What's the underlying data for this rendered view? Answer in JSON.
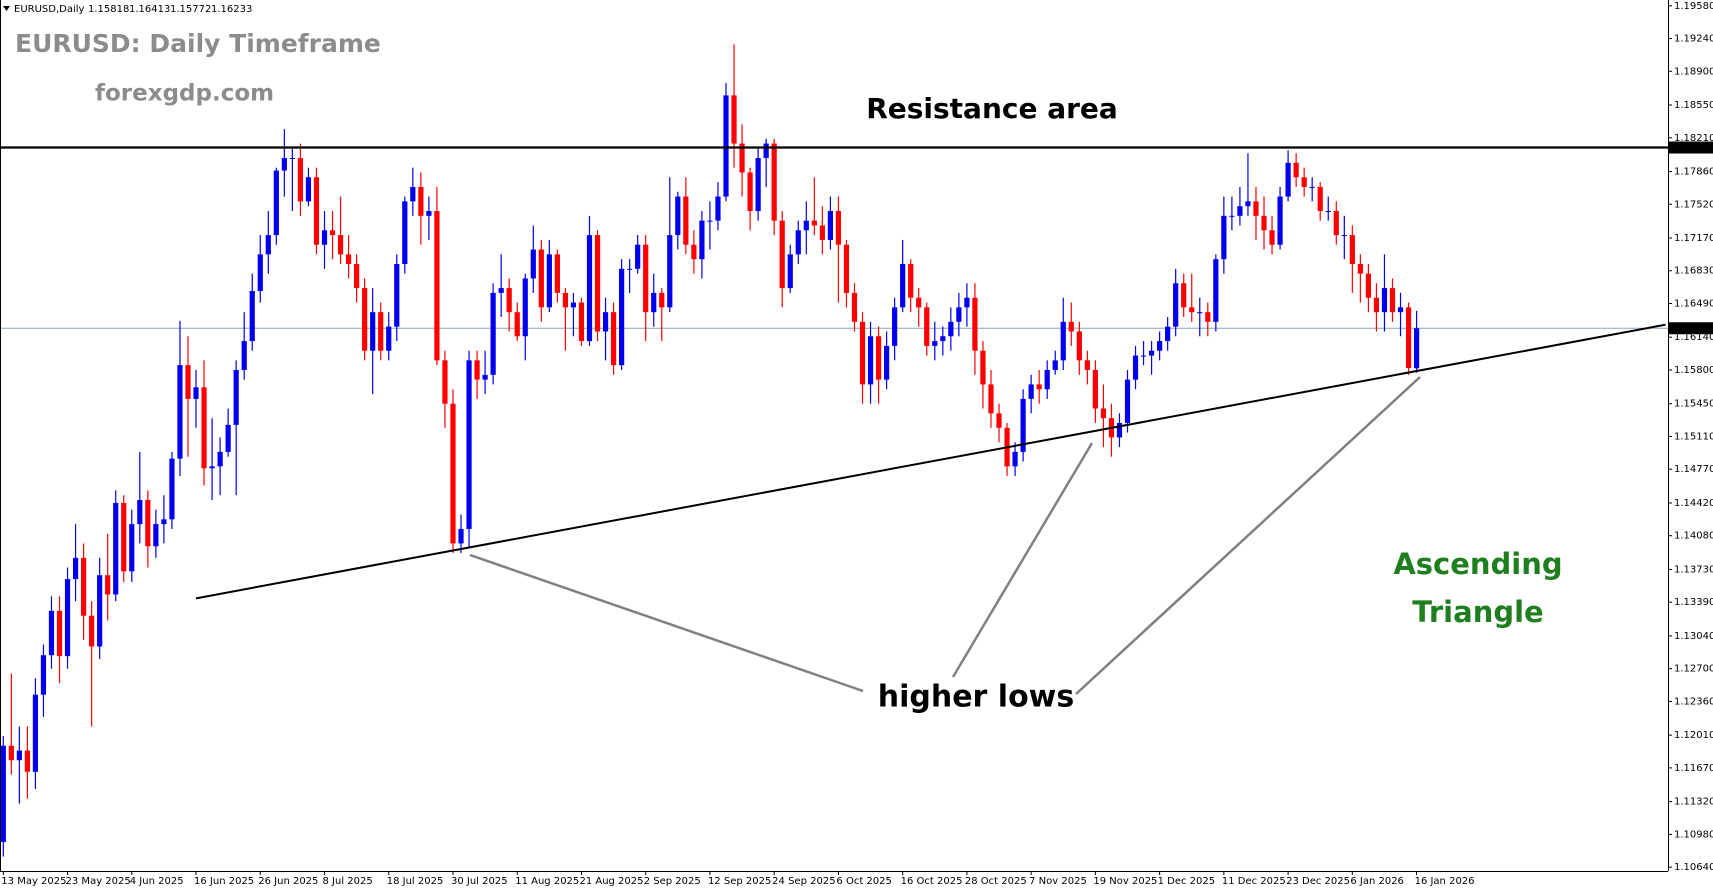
{
  "chart_data": {
    "type": "candlestick",
    "symbol": "EURUSD,Daily",
    "title": "EURUSD: Daily Timeframe",
    "subtitle": "forexgdp.com",
    "resistance_label": "Resistance area",
    "lows_label": "higher lows",
    "pattern_label": [
      "Ascending",
      "Triangle"
    ],
    "colors": {
      "up": "#0000ee",
      "down": "#ff0000",
      "resistance": "#000000",
      "trendline": "#000000",
      "price_line": "#8aa4c0",
      "text_muted": "#8c8c8c",
      "pattern": "#1f7f1f"
    },
    "resistance": 1.18109,
    "trendline": {
      "x": [
        24,
        207
      ],
      "y": [
        1.1343,
        1.1627
      ]
    },
    "ylim": [
      1.106,
      1.1964
    ],
    "yticks": [
      {
        "value": 1.1958,
        "label": "1.19580"
      },
      {
        "value": 1.1924,
        "label": "1.19240"
      },
      {
        "value": 1.189,
        "label": "1.18900"
      },
      {
        "value": 1.1855,
        "label": "1.18550"
      },
      {
        "value": 1.1821,
        "label": "1.18210"
      },
      {
        "value": 1.1786,
        "label": "1.17860"
      },
      {
        "value": 1.1752,
        "label": "1.17520"
      },
      {
        "value": 1.1717,
        "label": "1.17170"
      },
      {
        "value": 1.1683,
        "label": "1.16830"
      },
      {
        "value": 1.1649,
        "label": "1.16490"
      },
      {
        "value": 1.1614,
        "label": "1.16140"
      },
      {
        "value": 1.158,
        "label": "1.15800"
      },
      {
        "value": 1.1545,
        "label": "1.15450"
      },
      {
        "value": 1.1511,
        "label": "1.15110"
      },
      {
        "value": 1.1477,
        "label": "1.14770"
      },
      {
        "value": 1.1442,
        "label": "1.14420"
      },
      {
        "value": 1.1408,
        "label": "1.14080"
      },
      {
        "value": 1.1373,
        "label": "1.13730"
      },
      {
        "value": 1.1339,
        "label": "1.13390"
      },
      {
        "value": 1.1304,
        "label": "1.13040"
      },
      {
        "value": 1.127,
        "label": "1.12700"
      },
      {
        "value": 1.1236,
        "label": "1.12360"
      },
      {
        "value": 1.1201,
        "label": "1.12010"
      },
      {
        "value": 1.1167,
        "label": "1.11670"
      },
      {
        "value": 1.1132,
        "label": "1.11320"
      },
      {
        "value": 1.1098,
        "label": "1.10980"
      },
      {
        "value": 1.1064,
        "label": "1.10640"
      }
    ],
    "categories": [
      "13 May 2025",
      null,
      null,
      null,
      null,
      null,
      null,
      null,
      "23 May 2025",
      null,
      null,
      null,
      null,
      null,
      null,
      null,
      "4 Jun 2025",
      null,
      null,
      null,
      null,
      null,
      null,
      null,
      "16 Jun 2025",
      null,
      null,
      null,
      null,
      null,
      null,
      null,
      "26 Jun 2025",
      null,
      null,
      null,
      null,
      null,
      null,
      null,
      "8 Jul 2025",
      null,
      null,
      null,
      null,
      null,
      null,
      null,
      "18 Jul 2025",
      null,
      null,
      null,
      null,
      null,
      null,
      null,
      "30 Jul 2025",
      null,
      null,
      null,
      null,
      null,
      null,
      null,
      "11 Aug 2025",
      null,
      null,
      null,
      null,
      null,
      null,
      null,
      "21 Aug 2025",
      null,
      null,
      null,
      null,
      null,
      null,
      null,
      "2 Sep 2025",
      null,
      null,
      null,
      null,
      null,
      null,
      null,
      "12 Sep 2025",
      null,
      null,
      null,
      null,
      null,
      null,
      null,
      "24 Sep 2025",
      null,
      null,
      null,
      null,
      null,
      null,
      null,
      "6 Oct 2025",
      null,
      null,
      null,
      null,
      null,
      null,
      null,
      "16 Oct 2025",
      null,
      null,
      null,
      null,
      null,
      null,
      null,
      "28 Oct 2025",
      null,
      null,
      null,
      null,
      null,
      null,
      null,
      "7 Nov 2025",
      null,
      null,
      null,
      null,
      null,
      null,
      null,
      "19 Nov 2025",
      null,
      null,
      null,
      null,
      null,
      null,
      null,
      "1 Dec 2025",
      null,
      null,
      null,
      null,
      null,
      null,
      null,
      "11 Dec 2025",
      null,
      null,
      null,
      null,
      null,
      null,
      null,
      "23 Dec 2025",
      null,
      null,
      null,
      null,
      null,
      null,
      null,
      "6 Jan 2026",
      null,
      null,
      null,
      null,
      null,
      null,
      null,
      "16 Jan 2026"
    ],
    "open": [
      1.109,
      1.119,
      1.1175,
      1.1185,
      1.1163,
      1.1243,
      1.1284,
      1.133,
      1.1283,
      1.1363,
      1.1385,
      1.1325,
      1.1293,
      1.1367,
      1.1347,
      1.1442,
      1.1371,
      1.142,
      1.1445,
      1.1397,
      1.142,
      1.1425,
      1.1488,
      1.1585,
      1.155,
      1.1562,
      1.1478,
      1.148,
      1.1495,
      1.1523,
      1.158,
      1.161,
      1.1662,
      1.17,
      1.172,
      1.1787,
      1.18,
      1.18,
      1.1755,
      1.178,
      1.171,
      1.1725,
      1.172,
      1.17,
      1.169,
      1.1665,
      1.16,
      1.164,
      1.16,
      1.1625,
      1.169,
      1.1755,
      1.177,
      1.174,
      1.1745,
      1.159,
      1.1545,
      1.14,
      1.1415,
      1.159,
      1.157,
      1.1575,
      1.166,
      1.1665,
      1.164,
      1.1615,
      1.1675,
      1.1705,
      1.1645,
      1.17,
      1.166,
      1.1645,
      1.165,
      1.161,
      1.172,
      1.162,
      1.164,
      1.1585,
      1.1685,
      1.1685,
      1.171,
      1.164,
      1.166,
      1.1645,
      1.172,
      1.176,
      1.171,
      1.1695,
      1.1735,
      1.1735,
      1.176,
      1.1865,
      1.1815,
      1.1785,
      1.1745,
      1.18,
      1.1815,
      1.1735,
      1.1665,
      1.17,
      1.1725,
      1.1735,
      1.173,
      1.1715,
      1.1745,
      1.171,
      1.166,
      1.163,
      1.1565,
      1.1615,
      1.157,
      1.1605,
      1.1645,
      1.169,
      1.1655,
      1.1645,
      1.1605,
      1.161,
      1.1615,
      1.163,
      1.1645,
      1.1655,
      1.16,
      1.1565,
      1.1535,
      1.152,
      1.148,
      1.1495,
      1.155,
      1.1565,
      1.156,
      1.158,
      1.159,
      1.163,
      1.162,
      1.159,
      1.158,
      1.154,
      1.153,
      1.151,
      1.1525,
      1.157,
      1.1595,
      1.1595,
      1.16,
      1.161,
      1.1625,
      1.167,
      1.1645,
      1.164,
      1.164,
      1.163,
      1.1695,
      1.174,
      1.174,
      1.175,
      1.1755,
      1.174,
      1.1725,
      1.171,
      1.176,
      1.1795,
      1.178,
      1.177,
      1.177,
      1.1745,
      1.1745,
      1.172,
      1.172,
      1.169,
      1.168,
      1.1655,
      1.164,
      1.1665,
      1.164,
      1.1645,
      1.15818
    ],
    "high": [
      1.12,
      1.1265,
      1.121,
      1.121,
      1.126,
      1.1295,
      1.1345,
      1.1345,
      1.1375,
      1.142,
      1.14,
      1.134,
      1.1385,
      1.141,
      1.1455,
      1.145,
      1.1435,
      1.1495,
      1.1455,
      1.1435,
      1.145,
      1.1495,
      1.1631,
      1.1615,
      1.158,
      1.159,
      1.153,
      1.151,
      1.154,
      1.159,
      1.164,
      1.168,
      1.172,
      1.1745,
      1.179,
      1.183,
      1.181,
      1.1815,
      1.179,
      1.179,
      1.1745,
      1.1745,
      1.176,
      1.172,
      1.17,
      1.1675,
      1.1665,
      1.165,
      1.164,
      1.17,
      1.176,
      1.179,
      1.1785,
      1.176,
      1.177,
      1.16,
      1.156,
      1.143,
      1.16,
      1.16,
      1.16,
      1.167,
      1.17,
      1.1675,
      1.165,
      1.168,
      1.173,
      1.1715,
      1.1715,
      1.1705,
      1.1665,
      1.166,
      1.1655,
      1.174,
      1.1725,
      1.1655,
      1.165,
      1.1695,
      1.1695,
      1.172,
      1.172,
      1.168,
      1.1665,
      1.178,
      1.1765,
      1.178,
      1.1725,
      1.1745,
      1.1755,
      1.1775,
      1.1878,
      1.1918,
      1.1835,
      1.179,
      1.181,
      1.182,
      1.182,
      1.1745,
      1.171,
      1.1735,
      1.1755,
      1.178,
      1.175,
      1.176,
      1.176,
      1.1715,
      1.167,
      1.164,
      1.163,
      1.1625,
      1.162,
      1.1655,
      1.1715,
      1.1695,
      1.1665,
      1.165,
      1.163,
      1.1625,
      1.1645,
      1.166,
      1.167,
      1.167,
      1.161,
      1.158,
      1.1545,
      1.1525,
      1.1505,
      1.156,
      1.1575,
      1.158,
      1.159,
      1.16,
      1.1655,
      1.165,
      1.163,
      1.16,
      1.159,
      1.1565,
      1.1545,
      1.1535,
      1.158,
      1.1605,
      1.161,
      1.161,
      1.162,
      1.1635,
      1.1685,
      1.168,
      1.168,
      1.1655,
      1.165,
      1.17,
      1.176,
      1.176,
      1.177,
      1.1805,
      1.177,
      1.176,
      1.174,
      1.177,
      1.1808,
      1.1805,
      1.179,
      1.178,
      1.1775,
      1.176,
      1.1755,
      1.174,
      1.173,
      1.17,
      1.169,
      1.167,
      1.17,
      1.1675,
      1.166,
      1.165,
      1.16413
    ],
    "low": [
      1.1075,
      1.116,
      1.113,
      1.1135,
      1.1145,
      1.122,
      1.127,
      1.1255,
      1.127,
      1.134,
      1.13,
      1.121,
      1.128,
      1.132,
      1.134,
      1.136,
      1.136,
      1.14,
      1.1375,
      1.1385,
      1.14,
      1.1415,
      1.147,
      1.149,
      1.152,
      1.146,
      1.1445,
      1.145,
      1.149,
      1.145,
      1.157,
      1.16,
      1.165,
      1.168,
      1.171,
      1.176,
      1.1745,
      1.174,
      1.175,
      1.17,
      1.1685,
      1.1695,
      1.169,
      1.1675,
      1.165,
      1.159,
      1.1555,
      1.159,
      1.159,
      1.161,
      1.168,
      1.174,
      1.171,
      1.1715,
      1.1585,
      1.152,
      1.139,
      1.139,
      1.1395,
      1.155,
      1.1555,
      1.1565,
      1.1635,
      1.162,
      1.161,
      1.159,
      1.166,
      1.163,
      1.164,
      1.165,
      1.16,
      1.1615,
      1.1605,
      1.1605,
      1.161,
      1.159,
      1.1575,
      1.158,
      1.166,
      1.168,
      1.161,
      1.1625,
      1.161,
      1.164,
      1.1705,
      1.17,
      1.168,
      1.1675,
      1.1705,
      1.1725,
      1.1755,
      1.179,
      1.176,
      1.1725,
      1.1735,
      1.177,
      1.172,
      1.1645,
      1.166,
      1.169,
      1.17,
      1.172,
      1.17,
      1.1705,
      1.165,
      1.1645,
      1.162,
      1.1545,
      1.1545,
      1.1545,
      1.156,
      1.159,
      1.164,
      1.164,
      1.1625,
      1.1595,
      1.159,
      1.1595,
      1.16,
      1.1615,
      1.1625,
      1.1575,
      1.154,
      1.152,
      1.1505,
      1.147,
      1.147,
      1.1485,
      1.1535,
      1.1545,
      1.155,
      1.1575,
      1.158,
      1.1605,
      1.1575,
      1.1565,
      1.1525,
      1.15,
      1.149,
      1.15,
      1.1515,
      1.156,
      1.1585,
      1.1575,
      1.159,
      1.16,
      1.1615,
      1.1635,
      1.163,
      1.1615,
      1.1615,
      1.162,
      1.168,
      1.1725,
      1.173,
      1.174,
      1.1715,
      1.1705,
      1.17,
      1.1705,
      1.1755,
      1.177,
      1.176,
      1.1755,
      1.1735,
      1.1735,
      1.171,
      1.1695,
      1.166,
      1.165,
      1.164,
      1.162,
      1.162,
      1.163,
      1.1615,
      1.1575,
      1.15772
    ],
    "close": [
      1.119,
      1.1175,
      1.1185,
      1.1163,
      1.1243,
      1.1284,
      1.133,
      1.1283,
      1.1363,
      1.1385,
      1.1325,
      1.1293,
      1.1367,
      1.1347,
      1.1442,
      1.1371,
      1.142,
      1.1445,
      1.1397,
      1.142,
      1.1425,
      1.1488,
      1.1585,
      1.155,
      1.1562,
      1.1478,
      1.148,
      1.1495,
      1.1523,
      1.158,
      1.161,
      1.1662,
      1.17,
      1.172,
      1.1787,
      1.18,
      1.18,
      1.1755,
      1.178,
      1.171,
      1.1725,
      1.172,
      1.17,
      1.169,
      1.1665,
      1.16,
      1.164,
      1.16,
      1.1625,
      1.169,
      1.1755,
      1.177,
      1.174,
      1.1745,
      1.159,
      1.1545,
      1.14,
      1.1415,
      1.159,
      1.157,
      1.1575,
      1.166,
      1.1665,
      1.164,
      1.1615,
      1.1675,
      1.1705,
      1.1645,
      1.17,
      1.166,
      1.1645,
      1.165,
      1.161,
      1.172,
      1.162,
      1.164,
      1.1585,
      1.1685,
      1.1685,
      1.171,
      1.164,
      1.166,
      1.1645,
      1.172,
      1.176,
      1.171,
      1.1695,
      1.1735,
      1.1735,
      1.176,
      1.1865,
      1.1815,
      1.1785,
      1.1745,
      1.18,
      1.1815,
      1.1735,
      1.1665,
      1.17,
      1.1725,
      1.1735,
      1.173,
      1.1715,
      1.1745,
      1.171,
      1.166,
      1.163,
      1.1565,
      1.1615,
      1.157,
      1.1605,
      1.1645,
      1.169,
      1.1655,
      1.1645,
      1.1605,
      1.161,
      1.1615,
      1.163,
      1.1645,
      1.1655,
      1.16,
      1.1565,
      1.1535,
      1.152,
      1.148,
      1.1495,
      1.155,
      1.1565,
      1.156,
      1.158,
      1.159,
      1.163,
      1.162,
      1.159,
      1.158,
      1.154,
      1.153,
      1.151,
      1.1525,
      1.157,
      1.1595,
      1.1595,
      1.16,
      1.161,
      1.1625,
      1.167,
      1.1645,
      1.164,
      1.164,
      1.163,
      1.1695,
      1.174,
      1.174,
      1.175,
      1.1755,
      1.174,
      1.1725,
      1.171,
      1.176,
      1.1795,
      1.178,
      1.177,
      1.177,
      1.1745,
      1.1745,
      1.172,
      1.172,
      1.169,
      1.168,
      1.1655,
      1.164,
      1.1665,
      1.164,
      1.1645,
      1.1582,
      1.16233
    ]
  }
}
